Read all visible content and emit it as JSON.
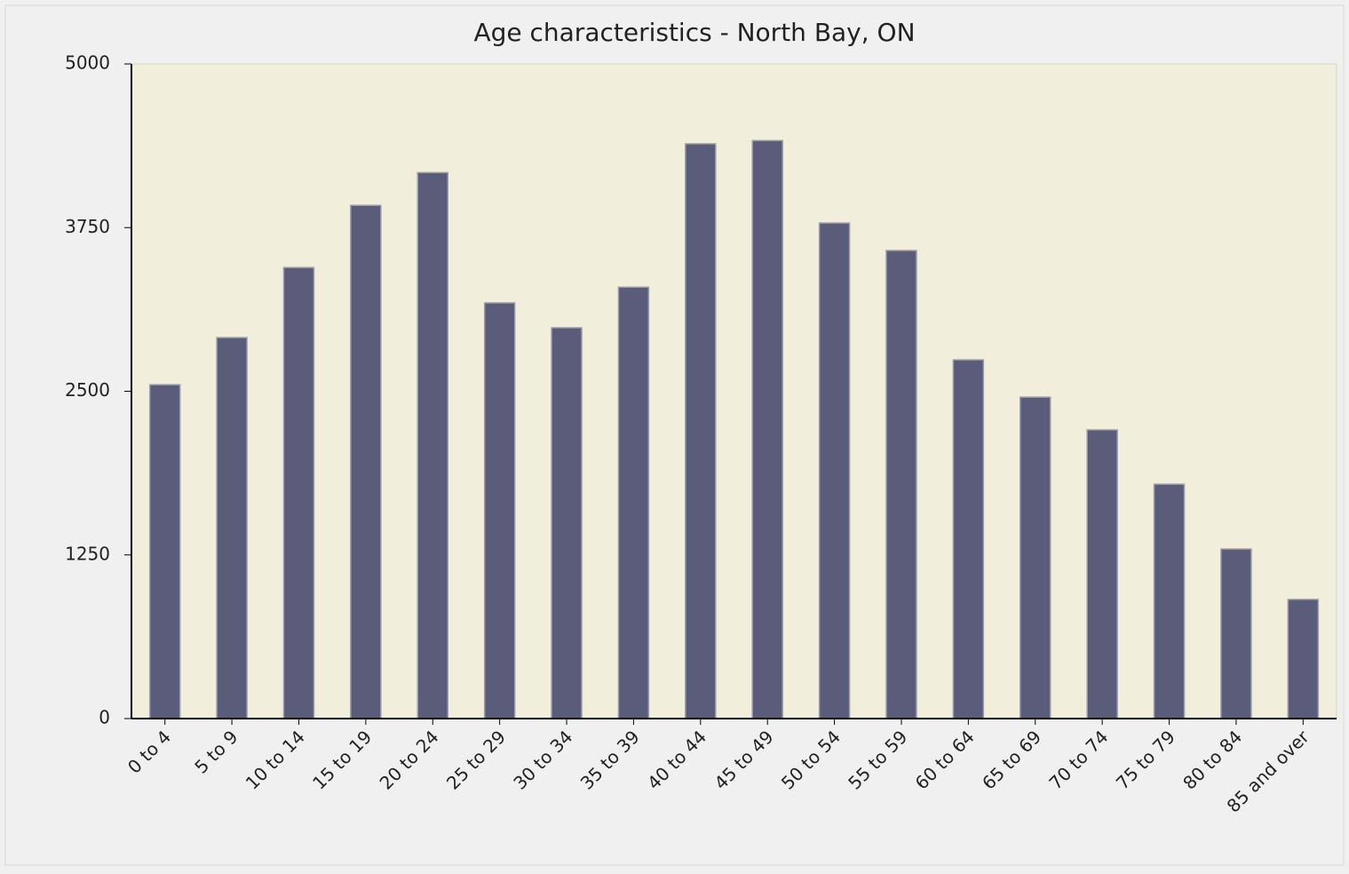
{
  "chart_data": {
    "type": "bar",
    "title": "Age characteristics - North Bay, ON",
    "categories": [
      "0 to 4",
      "5 to 9",
      "10 to 14",
      "15 to 19",
      "20 to 24",
      "25 to 29",
      "30 to 34",
      "35 to 39",
      "40 to 44",
      "45 to 49",
      "50 to 54",
      "55 to 59",
      "60 to 64",
      "65 to 69",
      "70 to 74",
      "75 to 79",
      "80 to 84",
      "85 and over"
    ],
    "values": [
      2550,
      2910,
      3445,
      3920,
      4170,
      3175,
      2985,
      3295,
      4390,
      4415,
      3785,
      3575,
      2740,
      2455,
      2205,
      1790,
      1295,
      910
    ],
    "color": "#5a5c7a",
    "ylim": [
      0,
      5000
    ],
    "yticks": [
      0,
      1250,
      2500,
      3750,
      5000
    ],
    "grid": false
  }
}
